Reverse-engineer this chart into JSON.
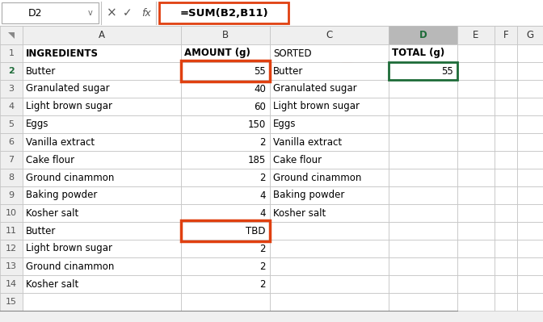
{
  "col_headers": [
    "",
    "A",
    "B",
    "C",
    "D",
    "E",
    "F",
    "G"
  ],
  "name_box": "D2",
  "formula_bar_text": "=SUM(B2,B11)",
  "header_bg": "#efefef",
  "cell_bg": "#ffffff",
  "grid_color": "#c0c0c0",
  "selected_col_header_bg": "#b8b8b8",
  "selected_col_header_text": "#1d6b38",
  "green_cell_border": "#1d6b38",
  "orange_box_color": "#e04010",
  "col_A_data": [
    "INGREDIENTS",
    "Butter",
    "Granulated sugar",
    "Light brown sugar",
    "Eggs",
    "Vanilla extract",
    "Cake flour",
    "Ground cinammon",
    "Baking powder",
    "Kosher salt",
    "Butter",
    "Light brown sugar",
    "Ground cinammon",
    "Kosher salt",
    ""
  ],
  "col_B_data": [
    "AMOUNT (g)",
    "55",
    "40",
    "60",
    "150",
    "2",
    "185",
    "2",
    "4",
    "4",
    "TBD",
    "2",
    "2",
    "2",
    ""
  ],
  "col_C_data": [
    "SORTED",
    "Butter",
    "Granulated sugar",
    "Light brown sugar",
    "Eggs",
    "Vanilla extract",
    "Cake flour",
    "Ground cinammon",
    "Baking powder",
    "Kosher salt",
    "",
    "",
    "",
    "",
    ""
  ],
  "col_D_data": [
    "TOTAL (g)",
    "55",
    "",
    "",
    "",
    "",
    "",
    "",
    "",
    "",
    "",
    "",
    "",
    "",
    ""
  ],
  "col_A_bold": [
    true,
    false,
    false,
    false,
    false,
    false,
    false,
    false,
    false,
    false,
    false,
    false,
    false,
    false,
    false
  ],
  "col_B_bold": [
    true,
    false,
    false,
    false,
    false,
    false,
    false,
    false,
    false,
    false,
    false,
    false,
    false,
    false,
    false
  ],
  "col_C_bold": [
    false,
    false,
    false,
    false,
    false,
    false,
    false,
    false,
    false,
    false,
    false,
    false,
    false,
    false,
    false
  ],
  "col_D_bold": [
    true,
    false,
    false,
    false,
    false,
    false,
    false,
    false,
    false,
    false,
    false,
    false,
    false,
    false,
    false
  ],
  "background_color": "#f0f0f0",
  "formula_bar_bg": "#ffffff",
  "num_rows": 15
}
